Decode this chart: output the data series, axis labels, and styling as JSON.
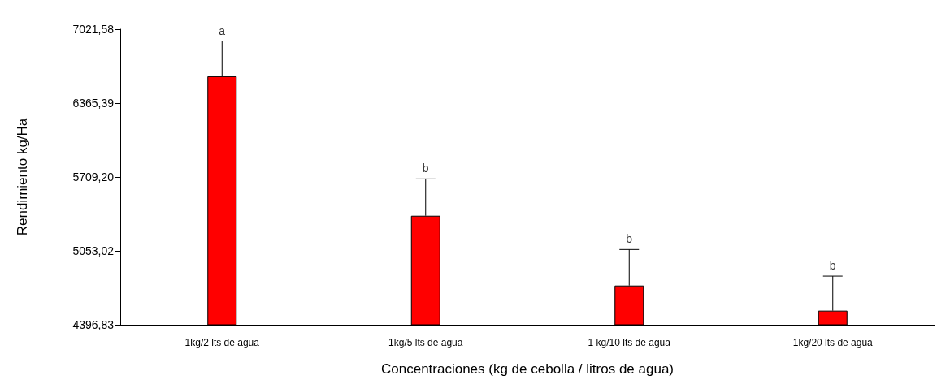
{
  "chart_data": {
    "type": "bar",
    "xlabel": "Concentraciones (kg de cebolla / litros de agua)",
    "ylabel": "Rendimiento kg/Ha",
    "categories": [
      "1kg/2 lts de agua",
      "1kg/5 lts de agua",
      "1 kg/10 lts de agua",
      "1kg/20 lts de agua"
    ],
    "values": [
      6604,
      5365,
      4745,
      4522
    ],
    "errors": [
      [
        6604,
        6917
      ],
      [
        5365,
        5692
      ],
      [
        4745,
        5065
      ],
      [
        4522,
        4829
      ]
    ],
    "color": "#ff0000",
    "ylim": [
      4396.83,
      7021.58
    ],
    "yticks": [
      {
        "value": 4396.83,
        "label": "4396,83"
      },
      {
        "value": 5053.02,
        "label": "5053,02"
      },
      {
        "value": 5709.2,
        "label": "5709,20"
      },
      {
        "value": 6365.39,
        "label": "6365,39"
      },
      {
        "value": 7021.58,
        "label": "7021,58"
      }
    ],
    "annotations": [
      {
        "text": "a",
        "x": "1kg/2 lts de agua",
        "y": 6917
      },
      {
        "text": "b",
        "x": "1kg/5 lts de agua",
        "y": 5692
      },
      {
        "text": "b",
        "x": "1 kg/10 lts de agua",
        "y": 5065
      },
      {
        "text": "b",
        "x": "1kg/20 lts de agua",
        "y": 4829
      }
    ],
    "grid": false
  }
}
